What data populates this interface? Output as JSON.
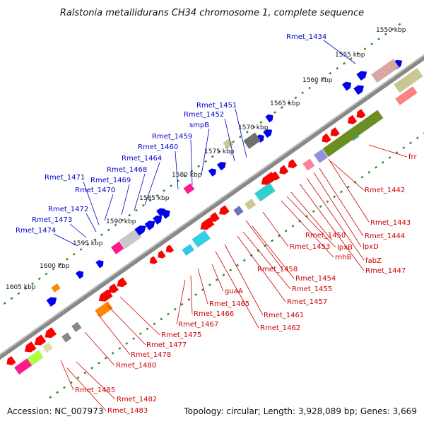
{
  "title": "Ralstonia metallidurans CH34 chromosome 1, complete sequence",
  "footer": {
    "accession": "Accession: NC_007973",
    "summary": "Topology: circular; Length: 3,928,089 bp; Genes: 3,669"
  },
  "colors": {
    "plus_strand_label": "#0000cc",
    "minus_strand_label": "#cc0000",
    "backbone": "#808080",
    "tick": "#2e8b2e"
  },
  "kbp_markers": [
    "1550 kbp",
    "1555 kbp",
    "1560 kbp",
    "1565 kbp",
    "1570 kbp",
    "1575 kbp",
    "1580 kbp",
    "1585 kbp",
    "1590 kbp",
    "1595 kbp",
    "1600 kbp",
    "1605 kbp"
  ],
  "labels_plus_strand": [
    "Rmet_1434",
    "Rmet_1451",
    "Rmet_1452",
    "smpB",
    "Rmet_1459",
    "Rmet_1460",
    "Rmet_1464",
    "Rmet_1468",
    "Rmet_1469",
    "Rmet_1470",
    "Rmet_1471",
    "Rmet_1472",
    "Rmet_1473",
    "Rmet_1474"
  ],
  "labels_minus_strand": [
    "frr",
    "Rmet_1442",
    "Rmet_1443",
    "Rmet_1444",
    "lpxD",
    "fabZ",
    "Rmet_1447",
    "Rmet_1450",
    "lpxB",
    "rnhB",
    "Rmet_1453",
    "Rmet_1458",
    "Rmet_1454",
    "Rmet_1455",
    "Rmet_1457",
    "Rmet_1461",
    "Rmet_1462",
    "guaA",
    "Rmet_1465",
    "Rmet_1466",
    "Rmet_1467",
    "Rmet_1475",
    "Rmet_1477",
    "Rmet_1478",
    "Rmet_1480",
    "Rmet_1485",
    "Rmet_1482",
    "Rmet_1483"
  ]
}
